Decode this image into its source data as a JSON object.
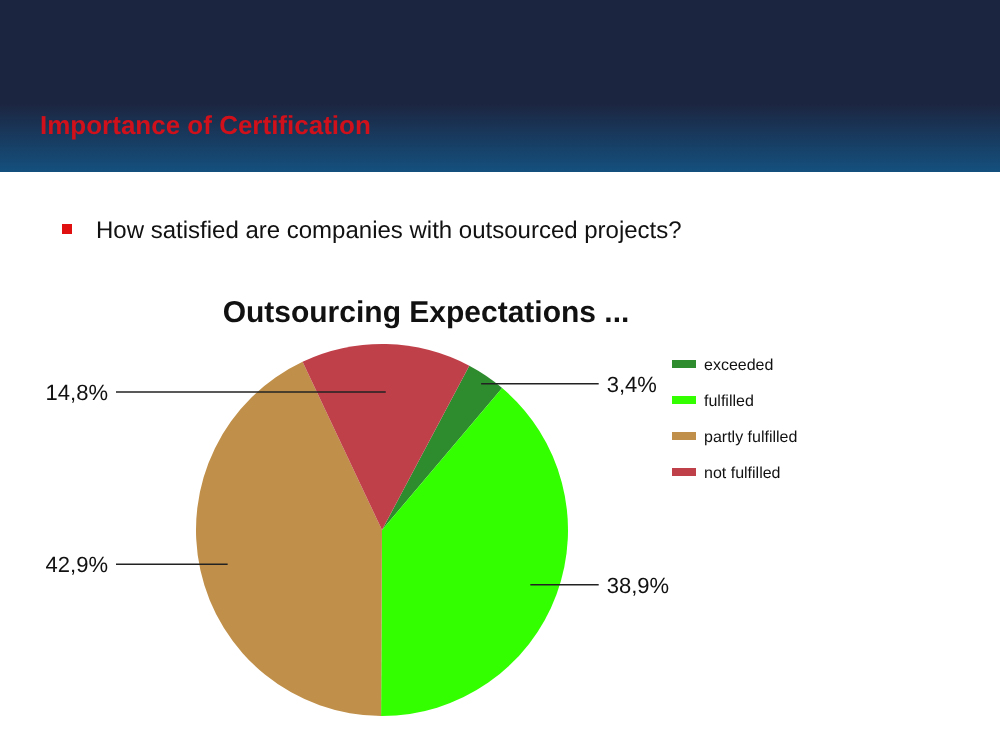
{
  "chart_data": {
    "type": "pie",
    "title": "Outsourcing Expectations ...",
    "subtitle": "Importance of Certification",
    "annotations": [
      "How satisfied are companies with outsourced projects?"
    ],
    "categories": [
      "exceeded",
      "fulfilled",
      "partly fulfilled",
      "not fulfilled"
    ],
    "values": [
      3.4,
      38.9,
      42.9,
      14.8
    ],
    "colors": [
      "#2e8b2e",
      "#33ff00",
      "#c0904a",
      "#c0404a"
    ],
    "value_labels": [
      "3,4%",
      "38,9%",
      "42,9%",
      "14,8%"
    ],
    "legend": "right"
  }
}
